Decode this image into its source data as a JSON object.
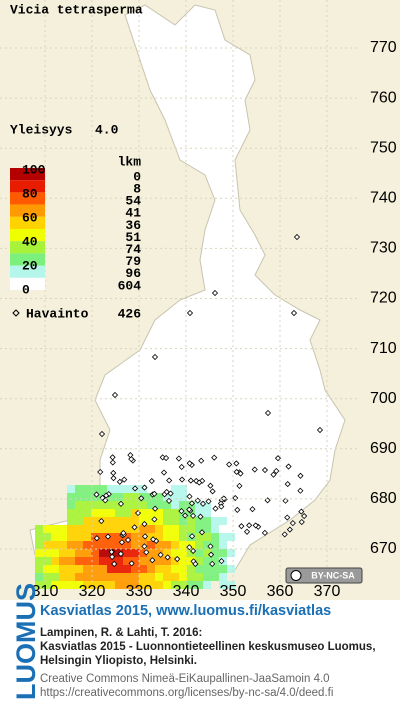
{
  "title": "Vicia tetrasperma",
  "frequency": {
    "label": "Yleisyys",
    "value": "4.0"
  },
  "legend": {
    "scale_labels": [
      100,
      80,
      60,
      40,
      20,
      0
    ],
    "count_header": "lkm",
    "classes": [
      {
        "color": "#b50000",
        "count": 0
      },
      {
        "color": "#e81c00",
        "count": 8
      },
      {
        "color": "#ff5a00",
        "count": 54
      },
      {
        "color": "#ff9a00",
        "count": 41
      },
      {
        "color": "#ffd200",
        "count": 36
      },
      {
        "color": "#f0ff00",
        "count": 51
      },
      {
        "color": "#a8f23a",
        "count": 74
      },
      {
        "color": "#7cf07c",
        "count": 79
      },
      {
        "color": "#b4f7ea",
        "count": 96
      },
      {
        "color": "#ffffff",
        "count": 604
      }
    ]
  },
  "observations": {
    "label": "Havainto",
    "count": 426
  },
  "y_axis": [
    770,
    760,
    750,
    740,
    730,
    720,
    710,
    700,
    690,
    680,
    670
  ],
  "x_axis": [
    310,
    320,
    330,
    340,
    350,
    360,
    370
  ],
  "license_badge": "BY-NC-SA",
  "footer": {
    "logo": "LUOMUS",
    "link": "Kasviatlas 2015, www.luomus.fi/kasviatlas",
    "citation_1": "Lampinen, R. & Lahti, T. 2016:",
    "citation_2": "Kasviatlas 2015 - Luonnontieteellinen keskusmuseo Luomus,",
    "citation_3": "Helsingin Yliopisto, Helsinki.",
    "license_1": "Creative Commons Nimeä-EiKaupallinen-JaaSamoin 4.0",
    "license_2": "https://creativecommons.org/licenses/by-nc-sa/4.0/deed.fi"
  }
}
